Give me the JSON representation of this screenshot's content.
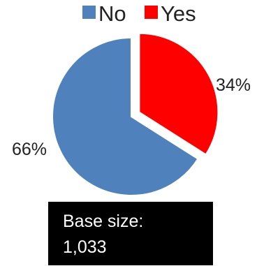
{
  "chart_data": {
    "type": "pie",
    "title": "",
    "legend_position": "top",
    "slices": [
      {
        "label": "No",
        "value": 66,
        "display": "66%",
        "color": "#4f81bd",
        "exploded": false
      },
      {
        "label": "Yes",
        "value": 34,
        "display": "34%",
        "color": "#ff0000",
        "exploded": true
      }
    ]
  },
  "base_size": {
    "label": "Base size:",
    "value": "1,033"
  }
}
